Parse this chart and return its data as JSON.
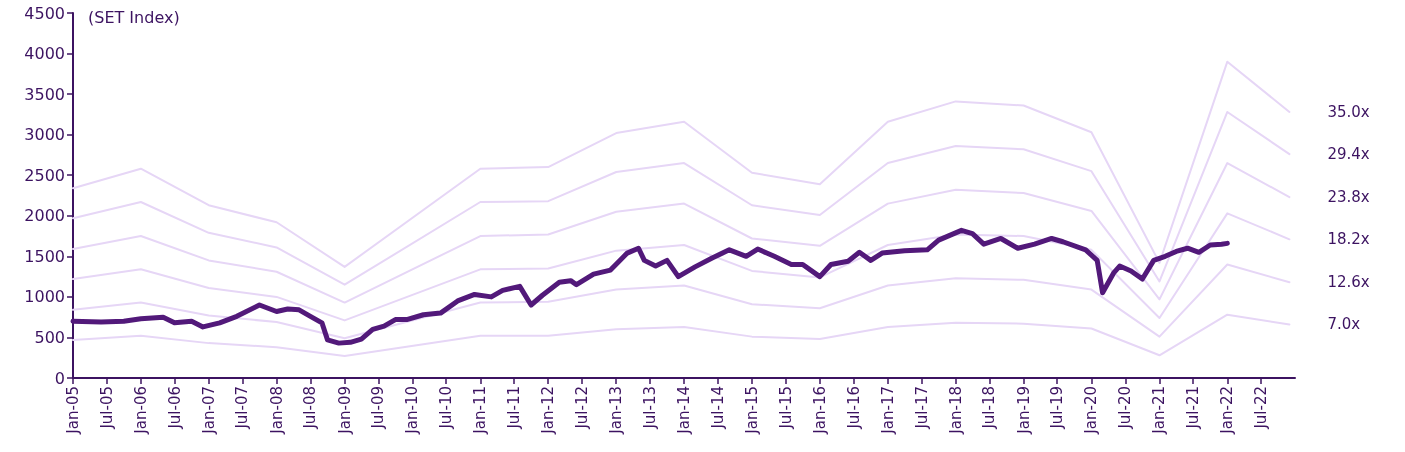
{
  "chart_data": {
    "type": "line",
    "ylabel": "(SET Index)",
    "legend": false,
    "grid": false,
    "marker": "none",
    "line_style": "solid",
    "xlim": [
      "2005-01-01",
      "2022-12-31"
    ],
    "xticks": [
      {
        "value": "2005-01",
        "label": "Jan-05"
      },
      {
        "value": "2005-07",
        "label": "Jul-05"
      },
      {
        "value": "2006-01",
        "label": "Jan-06"
      },
      {
        "value": "2006-07",
        "label": "Jul-06"
      },
      {
        "value": "2007-01",
        "label": "Jan-07"
      },
      {
        "value": "2007-07",
        "label": "Jul-07"
      },
      {
        "value": "2008-01",
        "label": "Jan-08"
      },
      {
        "value": "2008-07",
        "label": "Jul-08"
      },
      {
        "value": "2009-01",
        "label": "Jan-09"
      },
      {
        "value": "2009-07",
        "label": "Jul-09"
      },
      {
        "value": "2010-01",
        "label": "Jan-10"
      },
      {
        "value": "2010-07",
        "label": "Jul-10"
      },
      {
        "value": "2011-01",
        "label": "Jan-11"
      },
      {
        "value": "2011-07",
        "label": "Jul-11"
      },
      {
        "value": "2012-01",
        "label": "Jan-12"
      },
      {
        "value": "2012-07",
        "label": "Jul-12"
      },
      {
        "value": "2013-01",
        "label": "Jan-13"
      },
      {
        "value": "2013-07",
        "label": "Jul-13"
      },
      {
        "value": "2014-01",
        "label": "Jan-14"
      },
      {
        "value": "2014-07",
        "label": "Jul-14"
      },
      {
        "value": "2015-01",
        "label": "Jan-15"
      },
      {
        "value": "2015-07",
        "label": "Jul-15"
      },
      {
        "value": "2016-01",
        "label": "Jan-16"
      },
      {
        "value": "2016-07",
        "label": "Jul-16"
      },
      {
        "value": "2017-01",
        "label": "Jan-17"
      },
      {
        "value": "2017-07",
        "label": "Jul-17"
      },
      {
        "value": "2018-01",
        "label": "Jan-18"
      },
      {
        "value": "2018-07",
        "label": "Jul-18"
      },
      {
        "value": "2019-01",
        "label": "Jan-19"
      },
      {
        "value": "2019-07",
        "label": "Jul-19"
      },
      {
        "value": "2020-01",
        "label": "Jan-20"
      },
      {
        "value": "2020-07",
        "label": "Jul-20"
      },
      {
        "value": "2021-01",
        "label": "Jan-21"
      },
      {
        "value": "2021-07",
        "label": "Jul-21"
      },
      {
        "value": "2022-01",
        "label": "Jan-22"
      },
      {
        "value": "2022-07",
        "label": "Jul-22"
      }
    ],
    "ylim": [
      0,
      4500
    ],
    "yticks": [
      0,
      500,
      1000,
      1500,
      2000,
      2500,
      3000,
      3500,
      4000,
      4500
    ],
    "series": [
      {
        "name": "35.0x",
        "color": "#e6d6f6",
        "x": [
          "2005-01",
          "2006-01",
          "2007-01",
          "2008-01",
          "2009-01",
          "2011-01",
          "2012-01",
          "2013-01",
          "2014-01",
          "2015-01",
          "2016-01",
          "2017-01",
          "2018-01",
          "2019-01",
          "2020-01",
          "2021-01",
          "2022-01",
          "2022-12"
        ],
        "values": [
          2340,
          2580,
          2130,
          1920,
          1370,
          2580,
          2600,
          3020,
          3160,
          2530,
          2390,
          3160,
          3410,
          3360,
          3030,
          1420,
          3900,
          3280
        ]
      },
      {
        "name": "29.4x",
        "color": "#e6d6f6",
        "x": [
          "2005-01",
          "2006-01",
          "2007-01",
          "2008-01",
          "2009-01",
          "2011-01",
          "2012-01",
          "2013-01",
          "2014-01",
          "2015-01",
          "2016-01",
          "2017-01",
          "2018-01",
          "2019-01",
          "2020-01",
          "2021-01",
          "2022-01",
          "2022-12"
        ],
        "values": [
          1970,
          2170,
          1790,
          1610,
          1150,
          2170,
          2180,
          2540,
          2650,
          2130,
          2010,
          2650,
          2860,
          2820,
          2550,
          1190,
          3280,
          2760
        ]
      },
      {
        "name": "23.8x",
        "color": "#e6d6f6",
        "x": [
          "2005-01",
          "2006-01",
          "2007-01",
          "2008-01",
          "2009-01",
          "2011-01",
          "2012-01",
          "2013-01",
          "2014-01",
          "2015-01",
          "2016-01",
          "2017-01",
          "2018-01",
          "2019-01",
          "2020-01",
          "2021-01",
          "2022-01",
          "2022-12"
        ],
        "values": [
          1590,
          1750,
          1450,
          1310,
          930,
          1750,
          1770,
          2050,
          2150,
          1720,
          1630,
          2150,
          2320,
          2280,
          2060,
          970,
          2650,
          2230
        ]
      },
      {
        "name": "18.2x",
        "color": "#e6d6f6",
        "x": [
          "2005-01",
          "2006-01",
          "2007-01",
          "2008-01",
          "2009-01",
          "2011-01",
          "2012-01",
          "2013-01",
          "2014-01",
          "2015-01",
          "2016-01",
          "2017-01",
          "2018-01",
          "2019-01",
          "2020-01",
          "2021-01",
          "2022-01",
          "2022-12"
        ],
        "values": [
          1220,
          1340,
          1110,
          1000,
          710,
          1340,
          1350,
          1570,
          1640,
          1320,
          1240,
          1640,
          1770,
          1750,
          1580,
          740,
          2030,
          1710
        ]
      },
      {
        "name": "12.6x",
        "color": "#e6d6f6",
        "x": [
          "2005-01",
          "2006-01",
          "2007-01",
          "2008-01",
          "2009-01",
          "2011-01",
          "2012-01",
          "2013-01",
          "2014-01",
          "2015-01",
          "2016-01",
          "2017-01",
          "2018-01",
          "2019-01",
          "2020-01",
          "2021-01",
          "2022-01",
          "2022-12"
        ],
        "values": [
          840,
          930,
          770,
          690,
          490,
          930,
          940,
          1090,
          1140,
          910,
          860,
          1140,
          1230,
          1210,
          1090,
          510,
          1400,
          1180
        ]
      },
      {
        "name": "7.0x",
        "color": "#e6d6f6",
        "x": [
          "2005-01",
          "2006-01",
          "2007-01",
          "2008-01",
          "2009-01",
          "2011-01",
          "2012-01",
          "2013-01",
          "2014-01",
          "2015-01",
          "2016-01",
          "2017-01",
          "2018-01",
          "2019-01",
          "2020-01",
          "2021-01",
          "2022-01",
          "2022-12"
        ],
        "values": [
          470,
          520,
          430,
          380,
          270,
          520,
          520,
          600,
          630,
          510,
          480,
          630,
          680,
          670,
          610,
          280,
          780,
          660
        ]
      },
      {
        "color": "#52197a",
        "x": [
          "2005-01",
          "2005-06",
          "2005-10",
          "2006-01",
          "2006-05",
          "2006-07",
          "2006-10",
          "2006-12",
          "2007-03",
          "2007-06",
          "2007-10",
          "2008-01",
          "2008-03",
          "2008-05",
          "2008-07",
          "2008-09",
          "2008-10",
          "2008-12",
          "2009-02",
          "2009-04",
          "2009-06",
          "2009-08",
          "2009-10",
          "2009-12",
          "2010-03",
          "2010-06",
          "2010-09",
          "2010-12",
          "2011-03",
          "2011-05",
          "2011-08",
          "2011-10",
          "2011-12",
          "2012-03",
          "2012-05",
          "2012-06",
          "2012-09",
          "2012-12",
          "2013-03",
          "2013-05",
          "2013-06",
          "2013-08",
          "2013-10",
          "2013-12",
          "2014-03",
          "2014-06",
          "2014-09",
          "2014-12",
          "2015-02",
          "2015-05",
          "2015-08",
          "2015-10",
          "2016-01",
          "2016-03",
          "2016-06",
          "2016-08",
          "2016-10",
          "2016-12",
          "2017-04",
          "2017-08",
          "2017-10",
          "2018-02",
          "2018-04",
          "2018-06",
          "2018-09",
          "2018-12",
          "2019-03",
          "2019-06",
          "2019-08",
          "2019-12",
          "2020-02",
          "2020-03",
          "2020-05",
          "2020-06",
          "2020-08",
          "2020-10",
          "2020-12",
          "2021-02",
          "2021-04",
          "2021-06",
          "2021-08",
          "2021-10",
          "2021-12",
          "2022-01"
        ],
        "values": [
          700,
          690,
          700,
          730,
          750,
          680,
          700,
          630,
          680,
          760,
          900,
          820,
          850,
          840,
          760,
          680,
          470,
          430,
          440,
          480,
          600,
          640,
          720,
          720,
          780,
          800,
          950,
          1030,
          1000,
          1080,
          1130,
          900,
          1020,
          1180,
          1200,
          1150,
          1280,
          1330,
          1540,
          1600,
          1450,
          1380,
          1450,
          1250,
          1370,
          1480,
          1580,
          1500,
          1590,
          1500,
          1400,
          1400,
          1250,
          1400,
          1440,
          1550,
          1450,
          1540,
          1570,
          1580,
          1700,
          1820,
          1780,
          1650,
          1720,
          1600,
          1650,
          1720,
          1680,
          1580,
          1450,
          1050,
          1300,
          1380,
          1320,
          1220,
          1450,
          1500,
          1560,
          1600,
          1550,
          1640,
          1650,
          1660
        ]
      }
    ]
  }
}
